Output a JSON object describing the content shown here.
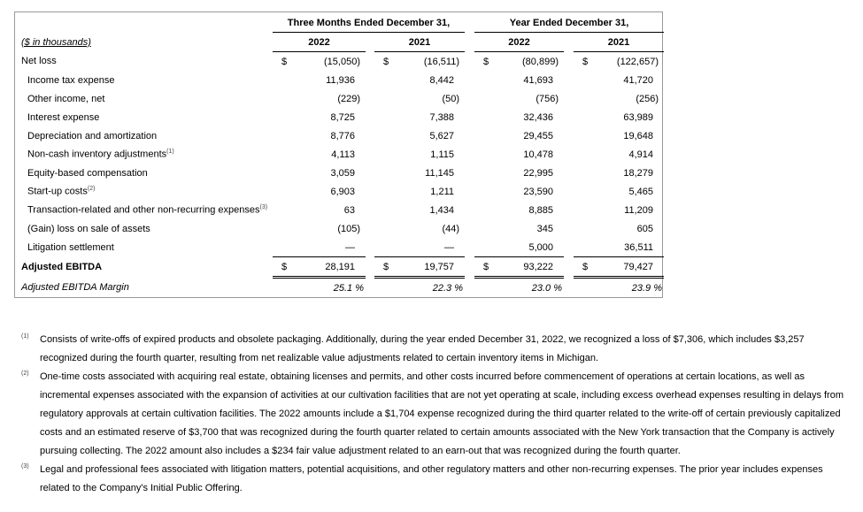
{
  "header": {
    "units_label": "($ in thousands)",
    "period_groups": [
      "Three Months Ended December 31,",
      "Year Ended December 31,"
    ],
    "years": [
      "2022",
      "2021",
      "2022",
      "2021"
    ]
  },
  "currency_symbol": "$",
  "rows": [
    {
      "label": "Net loss",
      "sup": "",
      "indent": false,
      "values": [
        "(15,050)",
        "(16,511)",
        "(80,899)",
        "(122,657)"
      ],
      "currency": true
    },
    {
      "label": "Income tax expense",
      "sup": "",
      "indent": true,
      "values": [
        "11,936",
        "8,442",
        "41,693",
        "41,720"
      ]
    },
    {
      "label": "Other income, net",
      "sup": "",
      "indent": true,
      "values": [
        "(229)",
        "(50)",
        "(756)",
        "(256)"
      ]
    },
    {
      "label": "Interest expense",
      "sup": "",
      "indent": true,
      "values": [
        "8,725",
        "7,388",
        "32,436",
        "63,989"
      ]
    },
    {
      "label": "Depreciation and amortization",
      "sup": "",
      "indent": true,
      "values": [
        "8,776",
        "5,627",
        "29,455",
        "19,648"
      ]
    },
    {
      "label": "Non-cash inventory adjustments",
      "sup": "(1)",
      "indent": true,
      "values": [
        "4,113",
        "1,115",
        "10,478",
        "4,914"
      ]
    },
    {
      "label": "Equity-based compensation",
      "sup": "",
      "indent": true,
      "values": [
        "3,059",
        "11,145",
        "22,995",
        "18,279"
      ]
    },
    {
      "label": "Start-up costs",
      "sup": "(2)",
      "indent": true,
      "values": [
        "6,903",
        "1,211",
        "23,590",
        "5,465"
      ]
    },
    {
      "label": "Transaction-related and other non-recurring expenses",
      "sup": "(3)",
      "indent": true,
      "values": [
        "63",
        "1,434",
        "8,885",
        "11,209"
      ]
    },
    {
      "label": "(Gain) loss on sale of assets",
      "sup": "",
      "indent": true,
      "values": [
        "(105)",
        "(44)",
        "345",
        "605"
      ]
    },
    {
      "label": "Litigation settlement",
      "sup": "",
      "indent": true,
      "values": [
        "—",
        "—",
        "5,000",
        "36,511"
      ],
      "underline": true
    }
  ],
  "total": {
    "label": "Adjusted EBITDA",
    "values": [
      "28,191",
      "19,757",
      "93,222",
      "79,427"
    ]
  },
  "margin": {
    "label": "Adjusted EBITDA Margin",
    "values": [
      "25.1 %",
      "22.3 %",
      "23.0 %",
      "23.9 %"
    ]
  },
  "footnotes": [
    {
      "marker": "(1)",
      "text": "Consists of write-offs of expired products and obsolete packaging. Additionally, during the year ended December 31, 2022, we recognized a loss of $7,306, which includes $3,257 recognized during the fourth quarter, resulting from net realizable value adjustments related to certain inventory items in Michigan."
    },
    {
      "marker": "(2)",
      "text": "One-time costs associated with acquiring real estate, obtaining licenses and permits, and other costs incurred before commencement of operations at certain locations, as well as incremental expenses associated with the expansion of activities at our cultivation facilities that are not yet operating at scale, including excess overhead expenses resulting in delays from regulatory approvals at certain cultivation facilities. The 2022 amounts include a $1,704 expense recognized during the third quarter related to the write-off of certain previously capitalized costs and an estimated reserve of $3,700 that was recognized during the fourth quarter related to certain amounts associated with the New York transaction that the Company is actively pursuing collecting. The 2022 amount also includes a $234 fair value adjustment related to an earn-out that was recognized during the fourth quarter."
    },
    {
      "marker": "(3)",
      "text": "Legal and professional fees associated with litigation matters, potential acquisitions, and other regulatory matters and other non-recurring expenses. The prior year includes expenses related to the Company's Initial Public Offering."
    }
  ]
}
